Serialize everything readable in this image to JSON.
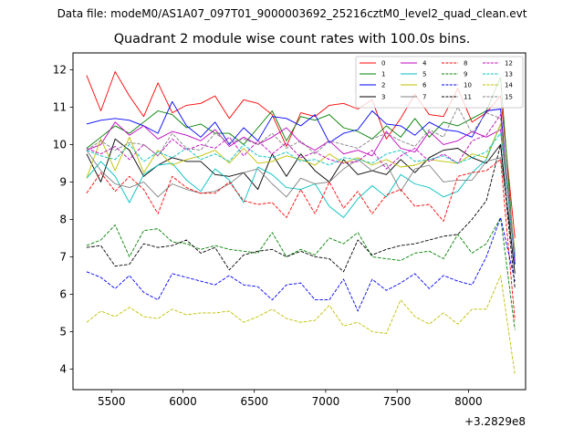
{
  "data_file": "Data file: modeM0/AS1A07_097T01_9000003692_25216cztM0_level2_quad_clean.evt",
  "chart_data": {
    "type": "line",
    "title": "Quadrant 2 module wise count rates with 100.0s bins.",
    "xlabel": "",
    "ylabel": "",
    "x_offset_label": "+3.2829e8",
    "xlim": [
      5230,
      8400
    ],
    "ylim": [
      3.45,
      12.45
    ],
    "xticks": [
      5500,
      6000,
      6500,
      7000,
      7500,
      8000
    ],
    "yticks": [
      4,
      5,
      6,
      7,
      8,
      9,
      10,
      11,
      12
    ],
    "grid": false,
    "legend_position": "top-right",
    "x": [
      5325,
      5425,
      5525,
      5625,
      5725,
      5825,
      5925,
      6025,
      6125,
      6225,
      6325,
      6425,
      6525,
      6625,
      6725,
      6825,
      6925,
      7025,
      7125,
      7225,
      7325,
      7425,
      7525,
      7625,
      7725,
      7825,
      7925,
      8025,
      8125,
      8225,
      8325
    ],
    "series": [
      {
        "name": "0",
        "color": "#ff0000",
        "dash": "solid",
        "values": [
          11.85,
          10.9,
          11.95,
          11.3,
          10.75,
          11.65,
          10.85,
          11.05,
          11.1,
          11.3,
          10.7,
          11.2,
          11.1,
          10.8,
          9.95,
          10.85,
          10.75,
          11.05,
          11.1,
          10.95,
          11.2,
          10.15,
          10.7,
          11.35,
          10.8,
          10.75,
          11.5,
          10.6,
          10.85,
          11.3,
          7.5
        ]
      },
      {
        "name": "1",
        "color": "#008000",
        "dash": "solid",
        "values": [
          9.9,
          10.2,
          10.5,
          10.3,
          10.6,
          10.9,
          10.8,
          10.45,
          10.55,
          10.3,
          10.3,
          10.0,
          10.45,
          10.9,
          10.1,
          10.75,
          10.65,
          10.8,
          10.45,
          10.35,
          10.15,
          10.5,
          10.2,
          10.7,
          10.2,
          10.6,
          10.5,
          10.7,
          10.9,
          11.8,
          6.8
        ]
      },
      {
        "name": "2",
        "color": "#0000ff",
        "dash": "solid",
        "values": [
          10.55,
          10.65,
          10.7,
          10.65,
          10.5,
          10.3,
          11.15,
          10.5,
          10.2,
          10.6,
          10.0,
          10.45,
          10.1,
          10.75,
          10.7,
          10.5,
          10.8,
          10.05,
          10.3,
          10.4,
          10.9,
          10.55,
          10.5,
          10.25,
          10.6,
          10.4,
          10.35,
          10.2,
          10.9,
          10.95,
          6.8
        ]
      },
      {
        "name": "3",
        "color": "#000000",
        "dash": "solid",
        "values": [
          9.75,
          9.0,
          10.15,
          9.85,
          9.15,
          9.45,
          9.65,
          9.55,
          9.55,
          9.2,
          9.15,
          9.25,
          8.8,
          9.75,
          9.15,
          9.75,
          9.3,
          9.0,
          9.6,
          9.2,
          9.3,
          9.2,
          9.6,
          9.25,
          9.65,
          9.85,
          9.9,
          9.65,
          9.5,
          10.0,
          6.55
        ]
      },
      {
        "name": "4",
        "color": "#bf00bf",
        "dash": "solid",
        "values": [
          9.85,
          10.0,
          10.6,
          10.25,
          10.5,
          10.15,
          10.35,
          10.25,
          10.1,
          10.4,
          9.95,
          10.2,
          10.0,
          10.2,
          10.45,
          10.05,
          9.85,
          10.1,
          9.75,
          9.85,
          9.7,
          10.35,
          9.9,
          9.8,
          10.35,
          10.0,
          10.1,
          10.35,
          10.2,
          10.4,
          7.0
        ]
      },
      {
        "name": "5",
        "color": "#00bfbf",
        "dash": "solid",
        "values": [
          9.1,
          9.55,
          9.15,
          8.45,
          9.2,
          9.45,
          9.5,
          9.05,
          8.75,
          9.35,
          9.05,
          8.45,
          9.4,
          9.2,
          8.85,
          8.8,
          8.95,
          8.35,
          8.05,
          8.55,
          8.9,
          8.6,
          9.2,
          8.95,
          8.85,
          8.6,
          8.75,
          9.25,
          9.6,
          10.55,
          7.05
        ]
      },
      {
        "name": "6",
        "color": "#bfbf00",
        "dash": "solid",
        "values": [
          9.1,
          10.15,
          9.3,
          10.2,
          9.25,
          9.85,
          9.45,
          9.6,
          9.7,
          9.85,
          9.5,
          9.9,
          9.5,
          9.55,
          9.7,
          9.6,
          9.45,
          9.75,
          9.5,
          9.65,
          9.45,
          9.6,
          9.4,
          9.45,
          9.6,
          9.55,
          9.5,
          9.75,
          9.65,
          10.55,
          7.15
        ]
      },
      {
        "name": "7",
        "color": "#808080",
        "dash": "solid",
        "values": [
          9.85,
          9.3,
          8.95,
          8.85,
          9.0,
          8.6,
          8.95,
          8.8,
          8.7,
          8.75,
          8.95,
          9.25,
          9.35,
          8.95,
          8.6,
          9.1,
          8.95,
          9.0,
          9.35,
          9.6,
          9.3,
          9.5,
          8.75,
          9.35,
          9.45,
          9.0,
          9.05,
          9.05,
          9.55,
          9.65,
          7.05
        ]
      },
      {
        "name": "8",
        "color": "#ff0000",
        "dash": "dashed",
        "values": [
          8.7,
          9.25,
          8.75,
          9.15,
          8.8,
          8.15,
          9.15,
          8.85,
          8.7,
          8.7,
          9.0,
          8.5,
          8.4,
          8.45,
          8.05,
          8.8,
          8.15,
          9.0,
          8.3,
          8.75,
          8.15,
          8.65,
          8.8,
          8.35,
          8.4,
          7.95,
          9.15,
          9.25,
          9.3,
          9.6,
          5.3
        ]
      },
      {
        "name": "9",
        "color": "#008000",
        "dash": "dashed",
        "values": [
          7.3,
          7.45,
          7.85,
          7.0,
          7.7,
          7.75,
          7.4,
          7.35,
          7.2,
          7.3,
          7.2,
          7.15,
          7.1,
          7.65,
          7.0,
          7.2,
          7.05,
          7.5,
          7.35,
          7.65,
          7.0,
          6.95,
          6.9,
          7.1,
          7.15,
          6.95,
          7.6,
          7.1,
          7.35,
          8.05,
          5.05
        ]
      },
      {
        "name": "10",
        "color": "#0000ff",
        "dash": "dashed",
        "values": [
          6.6,
          6.45,
          6.15,
          6.5,
          6.05,
          5.85,
          6.55,
          6.45,
          6.35,
          6.25,
          6.5,
          6.25,
          6.2,
          5.85,
          6.25,
          6.3,
          5.85,
          5.85,
          6.4,
          5.55,
          6.4,
          6.1,
          6.3,
          6.55,
          6.15,
          6.5,
          6.35,
          6.25,
          7.0,
          8.05,
          6.35
        ]
      },
      {
        "name": "11",
        "color": "#000000",
        "dash": "dashed",
        "values": [
          7.25,
          7.3,
          6.75,
          6.8,
          7.35,
          7.25,
          7.3,
          7.45,
          7.1,
          7.25,
          6.65,
          7.05,
          7.15,
          7.2,
          7.0,
          7.15,
          7.0,
          6.95,
          6.6,
          7.45,
          7.05,
          7.2,
          7.3,
          7.35,
          7.45,
          7.55,
          7.6,
          8.0,
          8.5,
          10.0,
          6.15
        ]
      },
      {
        "name": "12",
        "color": "#bf00bf",
        "dash": "dashed",
        "values": [
          9.9,
          9.75,
          9.95,
          9.6,
          10.0,
          9.7,
          10.15,
          9.85,
          10.0,
          9.9,
          10.2,
          9.7,
          10.1,
          9.75,
          10.05,
          9.65,
          9.8,
          9.6,
          9.5,
          9.55,
          9.85,
          9.35,
          9.7,
          9.9,
          9.55,
          9.75,
          9.5,
          10.1,
          10.25,
          10.8,
          6.9
        ]
      },
      {
        "name": "13",
        "color": "#00bfbf",
        "dash": "dashed",
        "values": [
          9.85,
          9.7,
          9.6,
          10.0,
          9.55,
          9.8,
          9.65,
          9.9,
          9.6,
          9.75,
          9.55,
          10.0,
          9.7,
          9.65,
          9.8,
          9.55,
          9.6,
          9.45,
          9.65,
          9.6,
          9.5,
          9.75,
          9.85,
          9.55,
          9.6,
          9.7,
          9.5,
          9.65,
          9.8,
          10.3,
          7.0
        ]
      },
      {
        "name": "14",
        "color": "#bfbf00",
        "dash": "dashed",
        "values": [
          5.25,
          5.55,
          5.4,
          5.65,
          5.4,
          5.35,
          5.6,
          5.45,
          5.5,
          5.5,
          5.55,
          5.25,
          5.4,
          5.6,
          5.35,
          5.25,
          5.3,
          5.7,
          5.15,
          5.25,
          5.0,
          4.95,
          5.85,
          5.4,
          5.2,
          5.5,
          5.2,
          5.6,
          5.6,
          6.5,
          3.85
        ]
      },
      {
        "name": "15",
        "color": "#808080",
        "dash": "dashed",
        "values": [
          9.85,
          10.1,
          9.85,
          10.05,
          10.0,
          9.7,
          10.3,
          9.9,
          9.85,
          10.3,
          10.05,
          10.15,
          10.0,
          10.3,
          9.9,
          10.1,
          9.75,
          10.1,
          10.0,
          9.9,
          10.15,
          10.3,
          10.1,
          9.95,
          10.4,
          10.2,
          11.0,
          10.3,
          10.85,
          10.7,
          7.1
        ]
      }
    ]
  }
}
